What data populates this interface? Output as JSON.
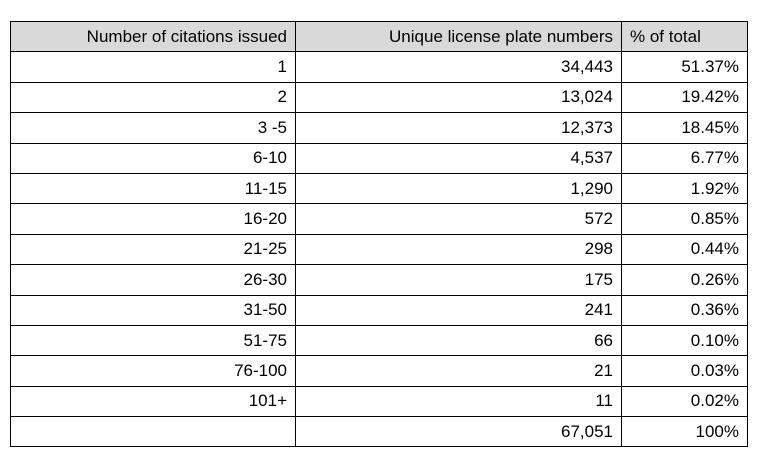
{
  "table": {
    "header": [
      "Number of citations issued",
      "Unique license plate numbers",
      "% of total"
    ],
    "rows": [
      [
        "1",
        "34,443",
        "51.37%"
      ],
      [
        "2",
        "13,024",
        "19.42%"
      ],
      [
        "3 -5",
        "12,373",
        "18.45%"
      ],
      [
        "6-10",
        "4,537",
        "6.77%"
      ],
      [
        "11-15",
        "1,290",
        "1.92%"
      ],
      [
        "16-20",
        "572",
        "0.85%"
      ],
      [
        "21-25",
        "298",
        "0.44%"
      ],
      [
        "26-30",
        "175",
        "0.26%"
      ],
      [
        "31-50",
        "241",
        "0.36%"
      ],
      [
        "51-75",
        "66",
        "0.10%"
      ],
      [
        "76-100",
        "21",
        "0.03%"
      ],
      [
        "101+",
        "11",
        "0.02%"
      ]
    ],
    "total": {
      "plates": "67,051",
      "percent": "100%"
    }
  }
}
